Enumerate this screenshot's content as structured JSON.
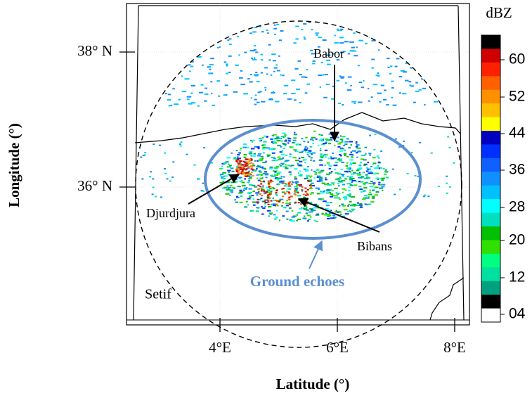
{
  "axes": {
    "y_label": "Longitude (°)",
    "x_label": "Latitude (°)",
    "y_ticks": [
      "38° N",
      "36° N"
    ],
    "x_ticks": [
      "4°E",
      "6°E",
      "8°E"
    ]
  },
  "colorbar": {
    "title": "dBZ",
    "labels": [
      "60",
      "52",
      "44",
      "36",
      "28",
      "20",
      "12",
      "04"
    ]
  },
  "annotations": {
    "babor": "Babor",
    "djurdjura": "Djurdjura",
    "bibans": "Bibans",
    "ground_echoes": "Ground echoes",
    "setif": "Setif"
  }
}
